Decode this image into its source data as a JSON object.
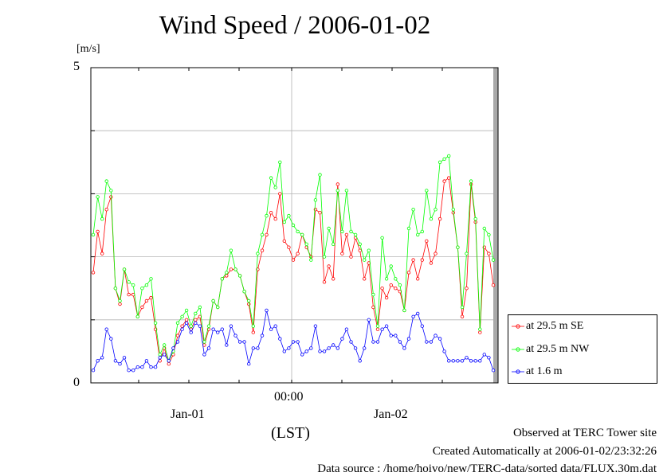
{
  "chart_data": {
    "type": "line",
    "title": "Wind Speed / 2006-01-02",
    "ylabel_unit": "[m/s]",
    "ylim": [
      0,
      5
    ],
    "ytick_labels": [
      "0",
      "5"
    ],
    "x_tick_labels": [
      "00:00"
    ],
    "x_date_labels": [
      "Jan-01",
      "Jan-02"
    ],
    "xlabel": "(LST)",
    "grid": true,
    "legend_placement": "bottom-right",
    "series": [
      {
        "name": "at 29.5 m SE",
        "color": "#ff0000",
        "marker": "open-circle",
        "values": [
          1.75,
          2.4,
          2.05,
          2.75,
          2.95,
          1.5,
          1.25,
          1.8,
          1.4,
          1.4,
          1.05,
          1.2,
          1.3,
          1.35,
          0.85,
          0.35,
          0.55,
          0.3,
          0.45,
          0.75,
          0.9,
          1.0,
          0.85,
          1.0,
          1.05,
          0.6,
          0.85,
          1.3,
          1.2,
          1.65,
          1.7,
          1.8,
          1.8,
          1.7,
          1.45,
          1.25,
          0.8,
          1.8,
          2.1,
          2.35,
          2.7,
          2.6,
          3.0,
          2.25,
          2.15,
          1.95,
          2.05,
          2.35,
          2.15,
          2.0,
          2.75,
          2.7,
          1.6,
          1.85,
          1.65,
          3.15,
          2.05,
          2.35,
          2.0,
          2.3,
          2.1,
          1.65,
          1.9,
          1.2,
          0.85,
          1.5,
          1.35,
          1.55,
          1.5,
          1.45,
          1.15,
          1.75,
          1.95,
          1.65,
          1.95,
          2.25,
          1.9,
          2.05,
          2.6,
          3.2,
          3.25,
          2.7,
          2.15,
          1.05,
          1.5,
          3.15,
          2.55,
          0.8,
          2.15,
          2.05,
          1.55
        ],
        "notes": "",
        "draw": true
      },
      {
        "name": "at 29.5 m NW",
        "color": "#00ff00",
        "marker": "open-circle",
        "values": [
          2.35,
          2.95,
          2.6,
          3.2,
          3.05,
          1.5,
          1.3,
          1.8,
          1.6,
          1.55,
          1.05,
          1.5,
          1.55,
          1.65,
          0.95,
          0.45,
          0.6,
          0.35,
          0.5,
          0.95,
          1.05,
          1.15,
          0.9,
          1.1,
          1.2,
          0.65,
          0.9,
          1.3,
          1.2,
          1.65,
          1.75,
          2.1,
          1.8,
          1.7,
          1.45,
          1.3,
          0.9,
          2.05,
          2.35,
          2.65,
          3.25,
          3.1,
          3.5,
          2.55,
          2.65,
          2.5,
          2.4,
          2.35,
          2.2,
          1.95,
          2.9,
          3.3,
          2.0,
          2.45,
          2.2,
          3.05,
          2.4,
          3.05,
          2.4,
          2.35,
          2.2,
          1.95,
          2.1,
          1.4,
          0.9,
          2.3,
          1.65,
          1.85,
          1.65,
          1.55,
          1.15,
          2.45,
          2.75,
          2.35,
          2.4,
          3.05,
          2.6,
          2.75,
          3.5,
          3.55,
          3.6,
          2.75,
          2.15,
          1.2,
          2.05,
          3.2,
          2.6,
          0.85,
          2.45,
          2.35,
          1.95
        ],
        "notes": "",
        "draw": true
      },
      {
        "name": "at 1.6 m",
        "color": "#0000ff",
        "marker": "open-circle",
        "values": [
          0.2,
          0.35,
          0.4,
          0.85,
          0.7,
          0.35,
          0.3,
          0.4,
          0.2,
          0.2,
          0.25,
          0.25,
          0.35,
          0.25,
          0.25,
          0.4,
          0.45,
          0.35,
          0.55,
          0.65,
          0.85,
          0.95,
          0.8,
          0.95,
          0.9,
          0.45,
          0.55,
          0.85,
          0.8,
          0.85,
          0.6,
          0.9,
          0.75,
          0.65,
          0.65,
          0.3,
          0.55,
          0.55,
          0.75,
          1.15,
          0.85,
          0.9,
          0.7,
          0.5,
          0.55,
          0.65,
          0.65,
          0.45,
          0.5,
          0.55,
          0.9,
          0.5,
          0.5,
          0.55,
          0.6,
          0.55,
          0.7,
          0.85,
          0.65,
          0.55,
          0.35,
          0.55,
          1.0,
          0.65,
          0.65,
          0.85,
          0.9,
          0.75,
          0.75,
          0.65,
          0.55,
          0.7,
          1.05,
          1.1,
          0.9,
          0.65,
          0.65,
          0.75,
          0.7,
          0.5,
          0.35,
          0.35,
          0.35,
          0.35,
          0.4,
          0.35,
          0.35,
          0.35,
          0.45,
          0.4,
          0.2
        ],
        "notes": "",
        "draw": true
      }
    ]
  },
  "footer": {
    "line1": "Observed at TERC Tower site",
    "line2": "Created Automatically at 2006-01-02/23:32:26",
    "line3": "Data source : /home/hoivo/new/TERC-data/sorted  data/FLUX.30m.dat"
  }
}
